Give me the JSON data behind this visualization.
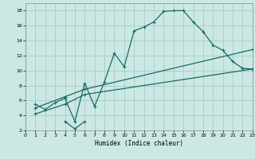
{
  "xlabel": "Humidex (Indice chaleur)",
  "bg_color": "#cce8e5",
  "grid_color": "#aad0cc",
  "line_color": "#1a6b5e",
  "xlim": [
    0,
    23
  ],
  "ylim": [
    2,
    19
  ],
  "xtick_labels": [
    "0",
    "1",
    "2",
    "3",
    "4",
    "5",
    "6",
    "7",
    "8",
    "9",
    "10",
    "11",
    "12",
    "13",
    "14",
    "15",
    "16",
    "17",
    "18",
    "19",
    "20",
    "21",
    "22",
    "23"
  ],
  "xticks": [
    0,
    1,
    2,
    3,
    4,
    5,
    6,
    7,
    8,
    9,
    10,
    11,
    12,
    13,
    14,
    15,
    16,
    17,
    18,
    19,
    20,
    21,
    22,
    23
  ],
  "yticks": [
    2,
    4,
    6,
    8,
    10,
    12,
    14,
    16,
    18
  ],
  "curve1_x": [
    1,
    2,
    3,
    4,
    5,
    6,
    7,
    8,
    9,
    10,
    11,
    12,
    13,
    14,
    15,
    16,
    17,
    18,
    19,
    20,
    21,
    22,
    23
  ],
  "curve1_y": [
    5.5,
    4.8,
    5.7,
    6.3,
    3.2,
    8.3,
    5.2,
    8.5,
    12.3,
    10.5,
    15.3,
    15.8,
    16.5,
    17.9,
    18.0,
    18.0,
    16.5,
    15.2,
    13.4,
    12.7,
    11.2,
    10.3,
    10.2
  ],
  "curve2_x": [
    1,
    4,
    6,
    23
  ],
  "curve2_y": [
    5.0,
    6.5,
    7.5,
    12.8
  ],
  "curve3_x": [
    1,
    4,
    6,
    23
  ],
  "curve3_y": [
    4.2,
    5.5,
    6.8,
    10.2
  ],
  "curve4_x": [
    4,
    5,
    6
  ],
  "curve4_y": [
    3.2,
    2.2,
    3.2
  ]
}
